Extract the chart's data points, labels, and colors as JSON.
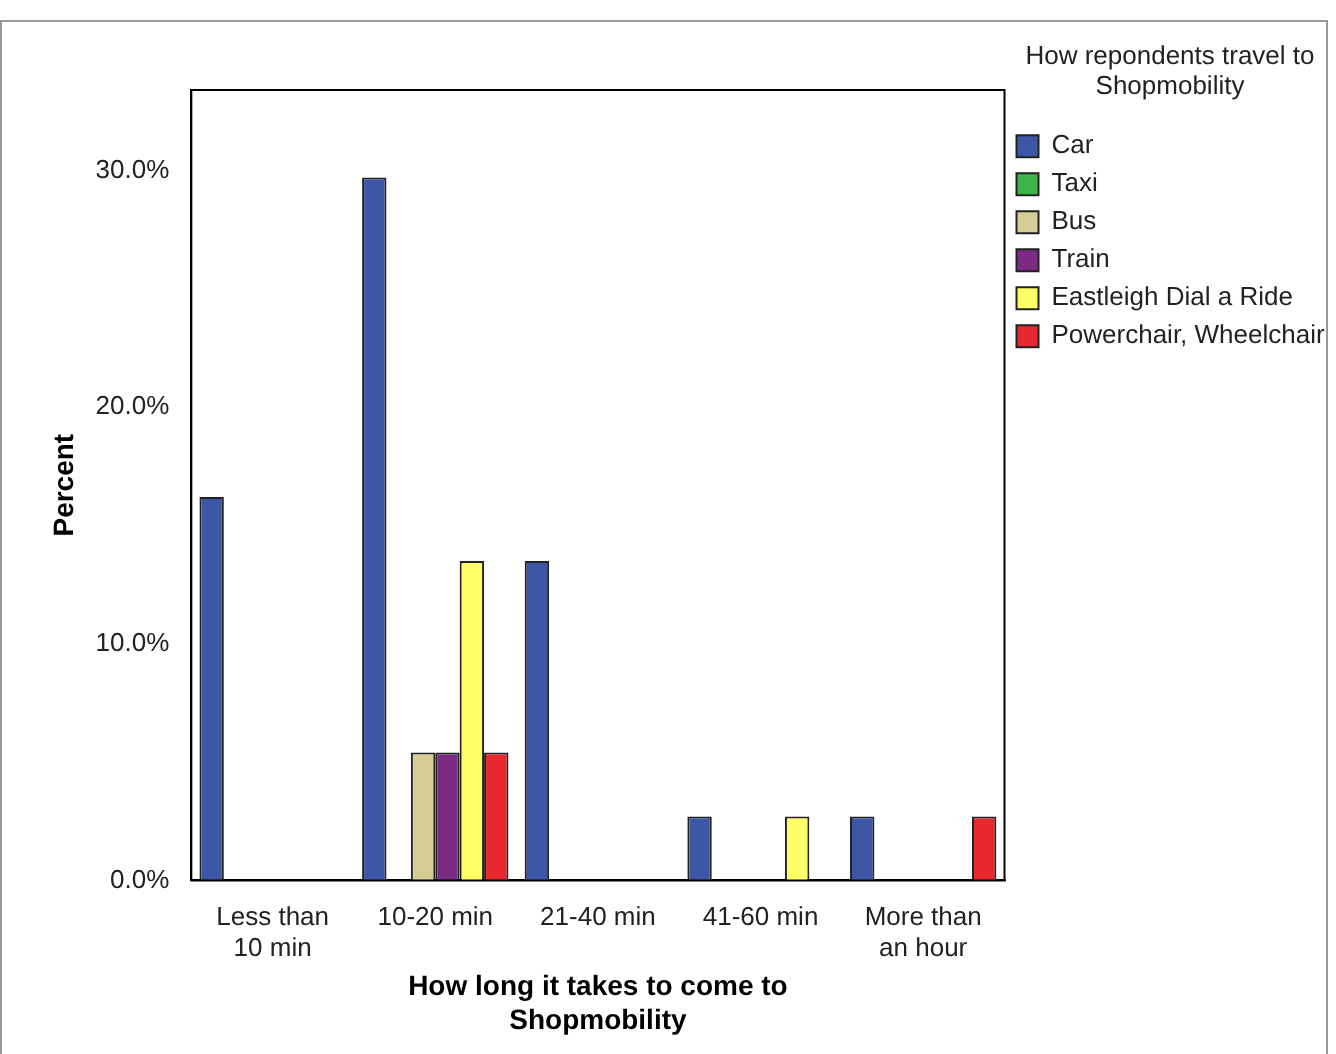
{
  "chart_data": {
    "type": "bar",
    "xlabel": "How long it takes to come to Shopmobility",
    "ylabel": "Percent",
    "legend_title": "How repondents travel to Shopmobility",
    "categories": [
      "Less than 10 min",
      "10-20 min",
      "21-40 min",
      "41-60 min",
      "More than an hour"
    ],
    "series": [
      {
        "name": "Car",
        "color": "#3d56a6",
        "values": [
          16.2,
          29.7,
          13.5,
          2.7,
          2.7
        ]
      },
      {
        "name": "Taxi",
        "color": "#3cb44a",
        "values": [
          0,
          0,
          0,
          0,
          0
        ]
      },
      {
        "name": "Bus",
        "color": "#d6cc96",
        "values": [
          0,
          5.4,
          0,
          0,
          0
        ]
      },
      {
        "name": "Train",
        "color": "#7c2b84",
        "values": [
          0,
          5.4,
          0,
          0,
          0
        ]
      },
      {
        "name": "Eastleigh Dial a Ride",
        "color": "#ffff66",
        "values": [
          0,
          13.5,
          0,
          2.7,
          0
        ]
      },
      {
        "name": "Powerchair, Wheelchair",
        "color": "#e8282f",
        "values": [
          0,
          5.4,
          0,
          0,
          2.7
        ]
      }
    ],
    "ylim": [
      0,
      33.4
    ],
    "yticks": [
      {
        "value": 0,
        "label": "0.0%"
      },
      {
        "value": 10,
        "label": "10.0%"
      },
      {
        "value": 20,
        "label": "20.0%"
      },
      {
        "value": 30,
        "label": "30.0%"
      }
    ],
    "grid": false,
    "legend": "right"
  }
}
